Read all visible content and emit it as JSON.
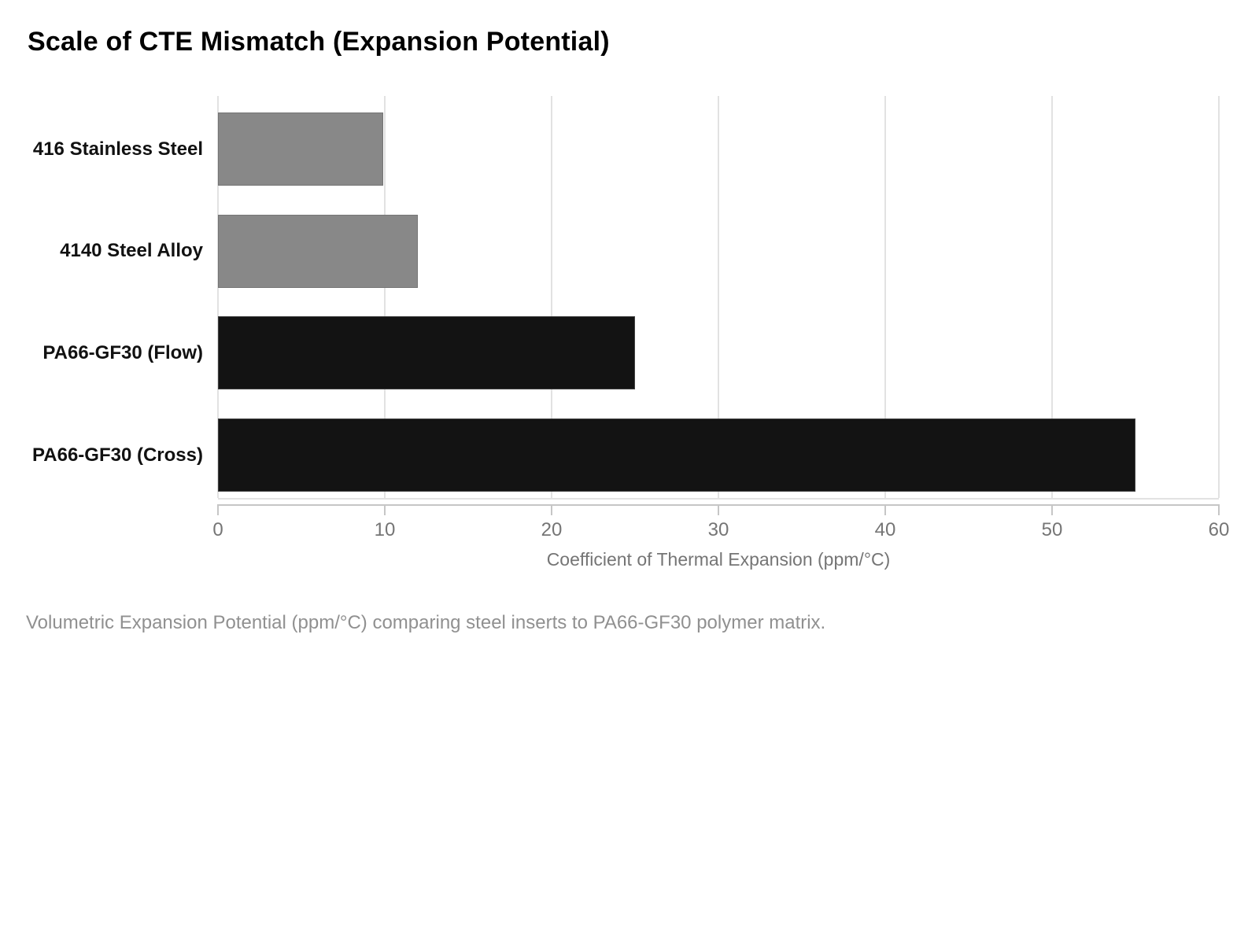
{
  "title": "Scale of CTE Mismatch (Expansion Potential)",
  "caption": "Volumetric Expansion Potential (ppm/°C) comparing steel inserts to PA66-GF30 polymer matrix.",
  "colors": {
    "steel_bar": "#888888",
    "polymer_bar": "#131313",
    "gridline": "#e2e2e2",
    "axis_line": "#c6c6c6",
    "tick_text": "#757575",
    "caption_text": "#909090",
    "title_text": "#000000"
  },
  "chart_data": {
    "type": "bar",
    "orientation": "horizontal",
    "title": "Scale of CTE Mismatch (Expansion Potential)",
    "categories": [
      "416 Stainless Steel",
      "4140 Steel Alloy",
      "PA66-GF30 (Flow)",
      "PA66-GF30 (Cross)"
    ],
    "values": [
      9.9,
      12,
      25,
      55
    ],
    "bar_colors": [
      "#888888",
      "#888888",
      "#131313",
      "#131313"
    ],
    "xlabel": "Coefficient of Thermal Expansion (ppm/°C)",
    "ylabel": "",
    "xlim": [
      0,
      60
    ],
    "xticks": [
      0,
      10,
      20,
      30,
      40,
      50,
      60
    ],
    "grid": "vertical",
    "legend": "none"
  }
}
